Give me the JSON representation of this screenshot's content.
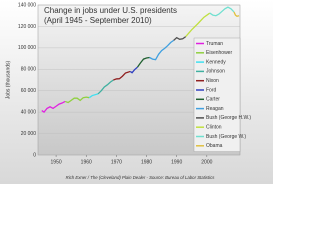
{
  "chart_data": {
    "type": "line",
    "title": "Change in jobs under U.S. presidents",
    "subtitle": "(April 1945 - September 2010)",
    "y_label": "Jobs (thousands)",
    "footnote": "Rich Exner / The (Cleveland) Plain Dealer - Source: Bureau of Labor Statistics",
    "xlim": [
      1944,
      2011
    ],
    "xticks": [
      1950,
      1960,
      1970,
      1980,
      1990,
      2000
    ],
    "ylim": [
      0,
      140000
    ],
    "yticks": [
      {
        "value": 0,
        "label": "0"
      },
      {
        "value": 20000,
        "label": "20 000"
      },
      {
        "value": 40000,
        "label": "40 000"
      },
      {
        "value": 60000,
        "label": "60 000"
      },
      {
        "value": 80000,
        "label": "80 000"
      },
      {
        "value": 100000,
        "label": "100 000"
      },
      {
        "value": 120000,
        "label": "120 000"
      },
      {
        "value": 140000,
        "label": "140 000"
      }
    ],
    "grid": true,
    "legend": "right",
    "series": [
      {
        "name": "Truman",
        "color": "#e020e0",
        "x": [
          1945.25,
          1946,
          1947,
          1948,
          1949,
          1950,
          1951,
          1952,
          1953
        ],
        "values": [
          41500,
          40000,
          43500,
          45000,
          43500,
          45500,
          47500,
          48500,
          50000
        ]
      },
      {
        "name": "Eisenhower",
        "color": "#90d040",
        "x": [
          1953,
          1954,
          1955,
          1956,
          1957,
          1958,
          1959,
          1960,
          1961
        ],
        "values": [
          50000,
          49000,
          51000,
          53000,
          53000,
          51000,
          53500,
          54000,
          53500
        ]
      },
      {
        "name": "Kennedy",
        "color": "#40e0f0",
        "x": [
          1961,
          1962,
          1963.9
        ],
        "values": [
          53500,
          55500,
          57000
        ]
      },
      {
        "name": "Johnson",
        "color": "#40b0a0",
        "x": [
          1963.9,
          1965,
          1966,
          1967,
          1968,
          1969
        ],
        "values": [
          57000,
          60000,
          63500,
          65500,
          68000,
          70000
        ]
      },
      {
        "name": "Nixon",
        "color": "#902020",
        "x": [
          1969,
          1970,
          1971,
          1972,
          1973,
          1974.6
        ],
        "values": [
          70000,
          71000,
          71200,
          73500,
          76500,
          78000
        ]
      },
      {
        "name": "Ford",
        "color": "#3040c0",
        "x": [
          1974.6,
          1975.2,
          1976,
          1977
        ],
        "values": [
          78000,
          76800,
          79500,
          82000
        ]
      },
      {
        "name": "Carter",
        "color": "#206030",
        "x": [
          1977,
          1978,
          1979,
          1980,
          1981
        ],
        "values": [
          82000,
          86000,
          89500,
          90500,
          91000
        ]
      },
      {
        "name": "Reagan",
        "color": "#40a0e0",
        "x": [
          1981,
          1982,
          1983,
          1984,
          1985,
          1986,
          1987,
          1988,
          1989
        ],
        "values": [
          91000,
          89500,
          89000,
          94000,
          97500,
          99500,
          102000,
          105000,
          107000
        ]
      },
      {
        "name": "Bush (George H.W.)",
        "color": "#505050",
        "x": [
          1989,
          1990,
          1991,
          1992,
          1993
        ],
        "values": [
          107000,
          109500,
          108000,
          108500,
          110500
        ]
      },
      {
        "name": "Clinton",
        "color": "#c0e040",
        "x": [
          1993,
          1995,
          1997,
          1999,
          2001
        ],
        "values": [
          110500,
          117000,
          122500,
          128500,
          132500
        ]
      },
      {
        "name": "Bush (George W.)",
        "color": "#70e0d0",
        "x": [
          2001,
          2002,
          2003,
          2004,
          2005,
          2006,
          2007,
          2008,
          2009
        ],
        "values": [
          132500,
          130500,
          130000,
          131500,
          134000,
          136500,
          138000,
          136500,
          133500
        ]
      },
      {
        "name": "Obama",
        "color": "#e0c040",
        "x": [
          2009,
          2009.5,
          2010,
          2010.7
        ],
        "values": [
          133500,
          130500,
          129500,
          130000
        ]
      }
    ]
  }
}
